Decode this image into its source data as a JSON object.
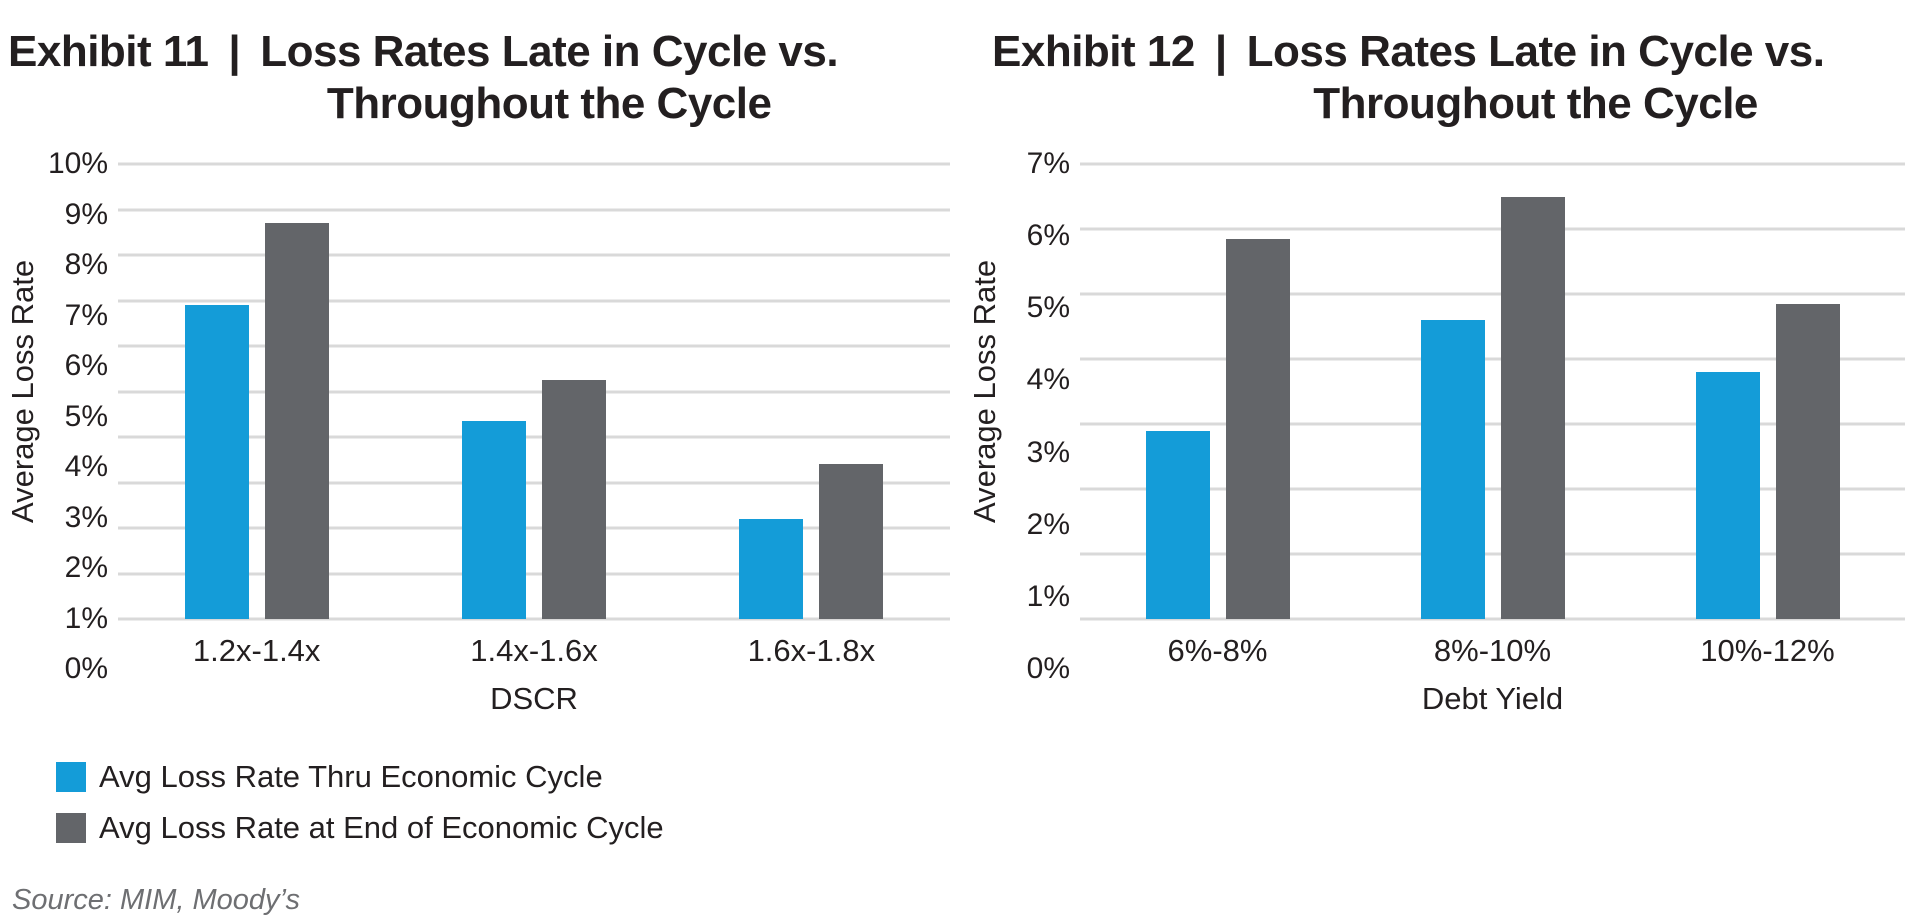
{
  "colors": {
    "series_thru": "#149CD8",
    "series_end": "#636569",
    "gridline": "#D9D9D9",
    "text": "#231F20",
    "source_text": "#6E6F72"
  },
  "chart_data": [
    {
      "type": "bar",
      "exhibit": "Exhibit 11",
      "separator": "|",
      "title_line1": "Loss Rates Late in Cycle vs.",
      "title_line2": "Throughout the Cycle",
      "categories": [
        "1.2x-1.4x",
        "1.4x-1.6x",
        "1.6x-1.8x"
      ],
      "series": [
        {
          "name": "Avg Loss Rate Thru Economic Cycle",
          "color": "#149CD8",
          "values": [
            6.9,
            4.35,
            2.2
          ]
        },
        {
          "name": "Avg Loss Rate at End of Economic Cycle",
          "color": "#636569",
          "values": [
            8.7,
            5.25,
            3.4
          ]
        }
      ],
      "xlabel": "DSCR",
      "ylabel": "Average Loss Rate",
      "ylim": [
        0,
        10
      ],
      "ytick_step": 1,
      "ytick_suffix": "%",
      "grid": true,
      "legend_position": "below-chart"
    },
    {
      "type": "bar",
      "exhibit": "Exhibit 12",
      "separator": "|",
      "title_line1": "Loss Rates Late in Cycle vs.",
      "title_line2": "Throughout the Cycle",
      "categories": [
        "6%-8%",
        "8%-10%",
        "10%-12%"
      ],
      "series": [
        {
          "name": "Avg Loss Rate Thru Economic Cycle",
          "color": "#149CD8",
          "values": [
            2.9,
            4.6,
            3.8
          ]
        },
        {
          "name": "Avg Loss Rate at End of Economic Cycle",
          "color": "#636569",
          "values": [
            5.85,
            6.5,
            4.85
          ]
        }
      ],
      "xlabel": "Debt Yield",
      "ylabel": "Average Loss Rate",
      "ylim": [
        0,
        7
      ],
      "ytick_step": 1,
      "ytick_suffix": "%",
      "grid": true,
      "legend_position": "none"
    }
  ],
  "legend": {
    "items": [
      {
        "label": "Avg Loss Rate Thru Economic Cycle",
        "color": "#149CD8"
      },
      {
        "label": "Avg Loss Rate at End of Economic Cycle",
        "color": "#636569"
      }
    ]
  },
  "source": {
    "text": "Source: MIM, Moody’s"
  }
}
